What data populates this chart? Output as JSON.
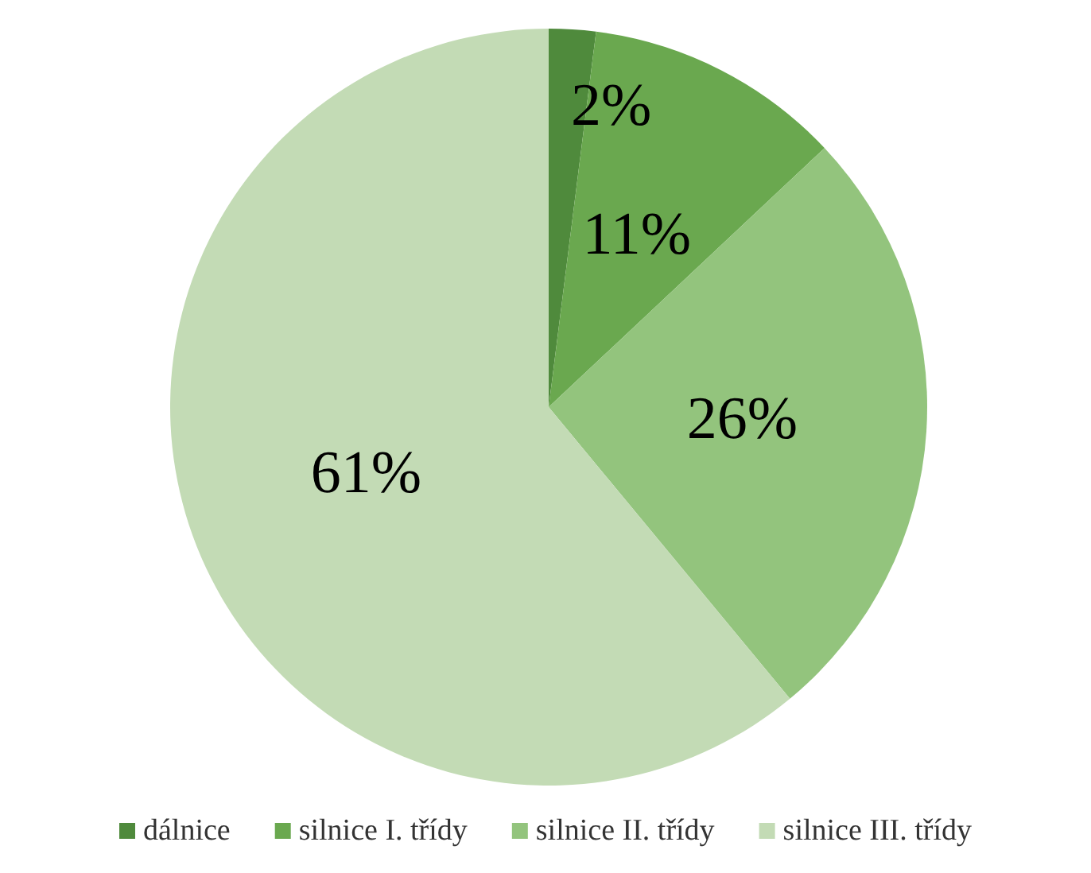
{
  "chart_data": {
    "type": "pie",
    "categories": [
      "dálnice",
      "silnice I. třídy",
      "silnice II. třídy",
      "silnice III. třídy"
    ],
    "values": [
      2,
      11,
      26,
      61
    ],
    "value_labels": [
      "2%",
      "11%",
      "26%",
      "61%"
    ],
    "colors": [
      "#4f8a3c",
      "#6aa84f",
      "#93c47d",
      "#c3dbb5"
    ],
    "legend": "bottom"
  }
}
